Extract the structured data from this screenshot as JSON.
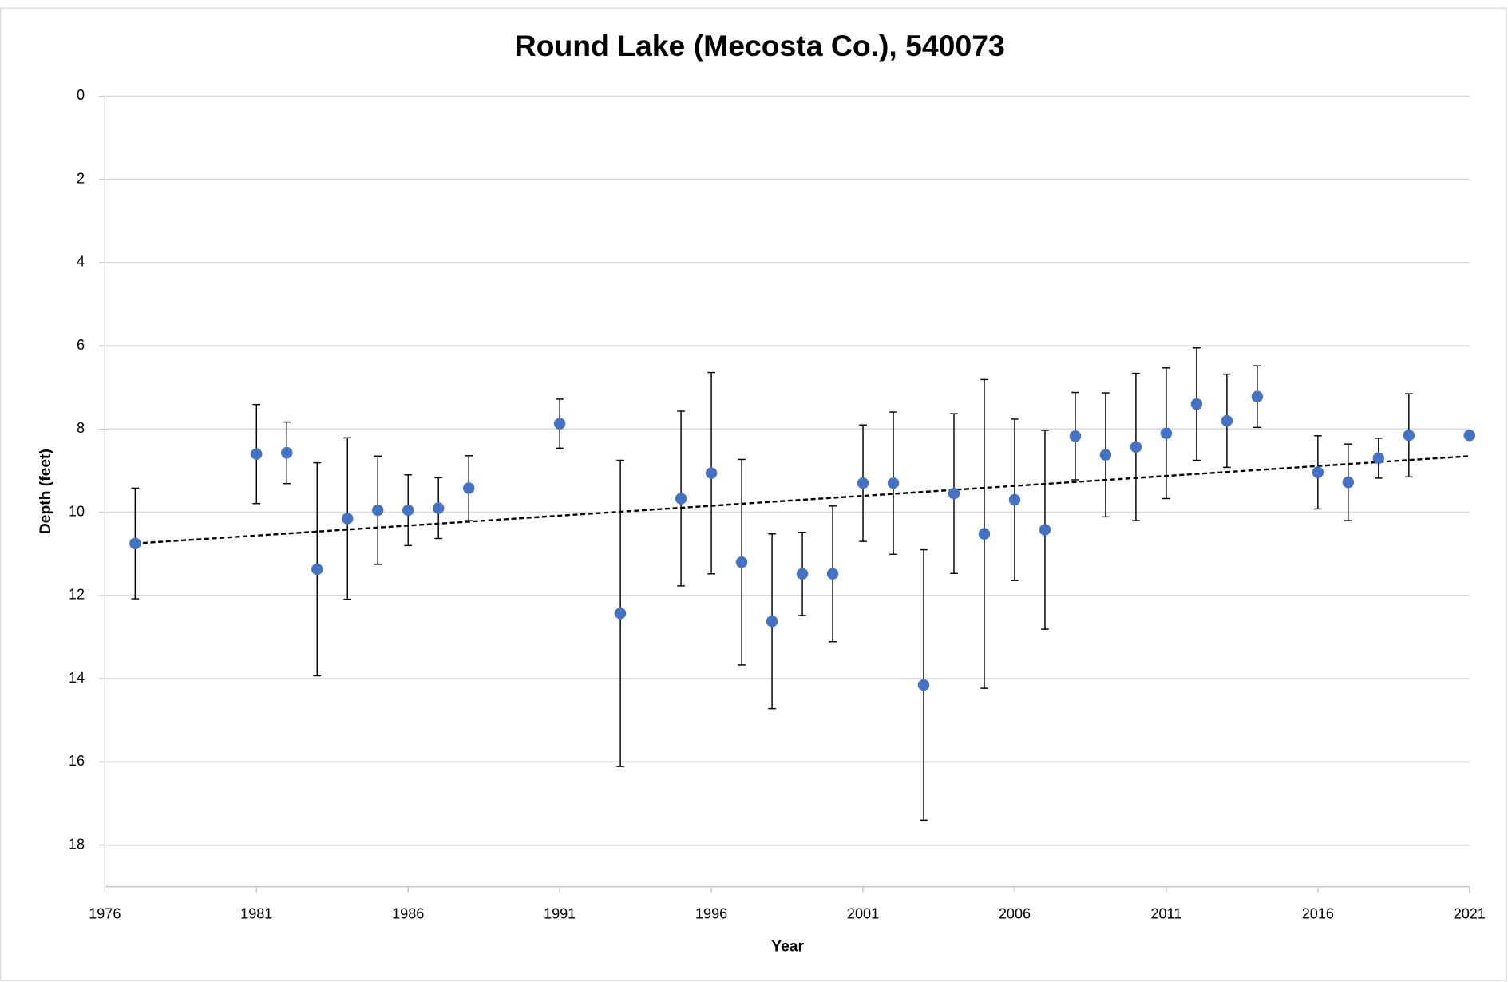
{
  "chart_data": {
    "type": "scatter",
    "title": "Round Lake (Mecosta Co.), 540073",
    "x_label": "Year",
    "y_label": "Depth (feet)",
    "x": [
      1977,
      1981,
      1982,
      1983,
      1984,
      1985,
      1986,
      1987,
      1988,
      1991,
      1993,
      1995,
      1996,
      1997,
      1998,
      1999,
      2000,
      2001,
      2002,
      2003,
      2004,
      2005,
      2006,
      2007,
      2008,
      2009,
      2010,
      2011,
      2012,
      2013,
      2014,
      2016,
      2017,
      2018,
      2019,
      2021
    ],
    "values": [
      10.75,
      8.6,
      8.57,
      11.37,
      10.15,
      9.95,
      9.95,
      9.9,
      9.42,
      7.87,
      12.43,
      9.67,
      9.06,
      11.2,
      12.62,
      11.48,
      11.48,
      9.3,
      9.3,
      14.15,
      9.55,
      10.52,
      9.7,
      10.42,
      8.17,
      8.62,
      8.43,
      8.1,
      7.4,
      7.8,
      7.22,
      9.04,
      9.28,
      8.7,
      8.15,
      8.15
    ],
    "errors": [
      1.33,
      1.19,
      0.74,
      2.56,
      1.94,
      1.3,
      0.85,
      0.73,
      0.78,
      0.59,
      3.68,
      2.1,
      2.42,
      2.47,
      2.1,
      1.0,
      1.63,
      1.4,
      1.71,
      3.25,
      1.92,
      3.71,
      1.94,
      2.39,
      1.05,
      1.49,
      1.77,
      1.57,
      1.35,
      1.12,
      0.74,
      0.88,
      0.92,
      0.48,
      1.0,
      null
    ],
    "color": "#4472c4",
    "trendline": {
      "x": [
        1977,
        2021
      ],
      "values": [
        10.75,
        8.65
      ],
      "color": "#000000"
    },
    "xlim": [
      1976,
      2021
    ],
    "xticks": [
      1976,
      1981,
      1986,
      1991,
      1996,
      2001,
      2006,
      2011,
      2016,
      2021
    ],
    "ylim": [
      0,
      19
    ],
    "y_inverted": true,
    "yticks": [
      0,
      2,
      4,
      6,
      8,
      10,
      12,
      14,
      16,
      18
    ],
    "grid": true
  }
}
